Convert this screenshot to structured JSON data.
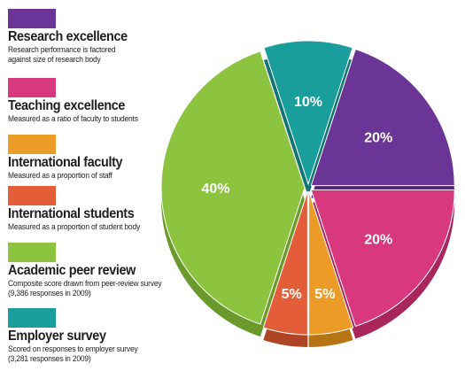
{
  "chart_data": {
    "type": "pie",
    "title": "",
    "legend_placement": "left",
    "slices": [
      {
        "label": "Research excellence",
        "value": 20,
        "display": "20%",
        "color": "#6a3596",
        "shade": "#4d2470"
      },
      {
        "label": "Teaching excellence",
        "value": 20,
        "display": "20%",
        "color": "#d8387d",
        "shade": "#a8265c"
      },
      {
        "label": "International faculty",
        "value": 5,
        "display": "5%",
        "color": "#eb9b26",
        "shade": "#b67415"
      },
      {
        "label": "International students",
        "value": 5,
        "display": "5%",
        "color": "#e35d38",
        "shade": "#ad4424"
      },
      {
        "label": "Academic peer review",
        "value": 40,
        "display": "40%",
        "color": "#8cc43f",
        "shade": "#6a9a2b"
      },
      {
        "label": "Employer survey",
        "value": 10,
        "display": "10%",
        "color": "#1a9e9b",
        "shade": "#127573"
      }
    ]
  },
  "legend": {
    "items": [
      {
        "title": "Research excellence",
        "description": "Research performance is factored\nagainst size of research body",
        "color": "#6a3596"
      },
      {
        "title": "Teaching excellence",
        "description": "Measured as a ratio of faculty to students",
        "color": "#d8387d"
      },
      {
        "title": "International faculty",
        "description": "Measured as a proportion of staff",
        "color": "#eb9b26"
      },
      {
        "title": "International students",
        "description": "Measured as a proportion of student body",
        "color": "#e35d38"
      },
      {
        "title": "Academic peer review",
        "description": "Composite score drawn from peer-review survey\n(9,386 responses in 2009)",
        "color": "#8cc43f"
      },
      {
        "title": "Employer survey",
        "description": "Scored on responses to employer survey\n(3,281 responses in 2009)",
        "color": "#1a9e9b"
      }
    ]
  }
}
